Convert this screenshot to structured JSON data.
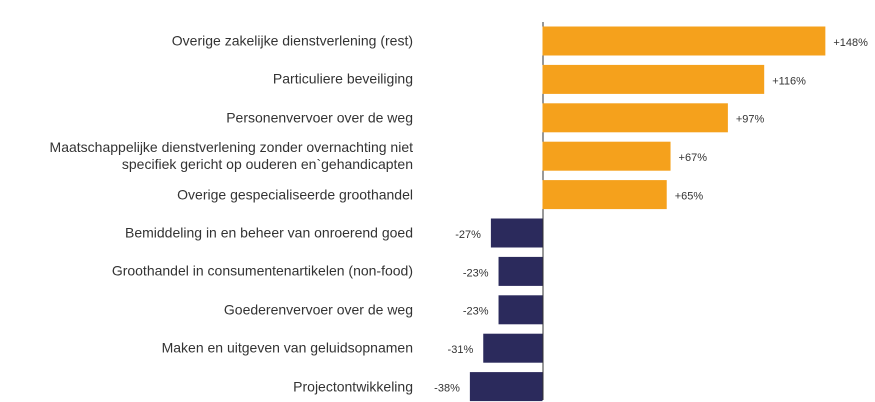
{
  "chart_data": {
    "type": "bar",
    "orientation": "horizontal",
    "categories": [
      "Overige zakelijke dienstverlening (rest)",
      "Particuliere beveiliging",
      "Personenvervoer over de weg",
      "Maatschappelijke dienstverlening zonder overnachting niet\nspecifiek gericht op ouderen en`gehandicapten",
      "Overige gespecialiseerde groothandel",
      "Bemiddeling in en beheer van onroerend goed",
      "Groothandel in consumentenartikelen (non-food)",
      "Goederenvervoer over de weg",
      "Maken en uitgeven van geluidsopnamen",
      "Projectontwikkeling"
    ],
    "values": [
      148,
      116,
      97,
      67,
      65,
      -27,
      -23,
      -23,
      -31,
      -38
    ],
    "value_labels": [
      "+148%",
      "+116%",
      "+97%",
      "+67%",
      "+65%",
      "-27%",
      "-23%",
      "-23%",
      "-31%",
      "-38%"
    ],
    "positive_color": "#f5a11c",
    "negative_color": "#2b2a5c",
    "xlim": [
      -62,
      152
    ]
  }
}
